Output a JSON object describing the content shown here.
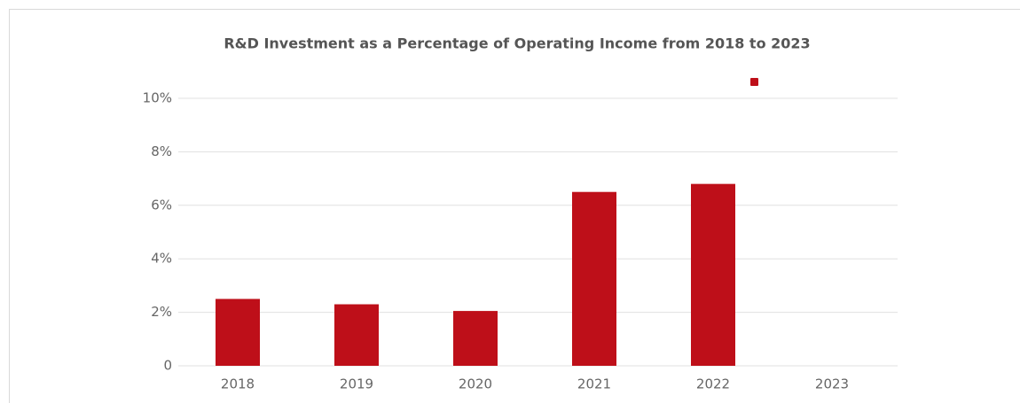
{
  "chart_data": {
    "type": "bar",
    "title": "R&D Investment as a Percentage of Operating Income from 2018 to 2023",
    "categories": [
      "2018",
      "2019",
      "2020",
      "2021",
      "2022",
      "2023"
    ],
    "values": [
      2.5,
      2.3,
      2.05,
      6.5,
      6.8,
      null
    ],
    "color": "#be0f19",
    "ylim": [
      0,
      10
    ],
    "yticks": [
      0,
      {
        "value": 2,
        "label": "2%"
      },
      {
        "value": 4,
        "label": "4%"
      },
      {
        "value": 6,
        "label": "6%"
      },
      {
        "value": 8,
        "label": "8%"
      },
      {
        "value": 10,
        "label": "10%"
      }
    ],
    "grid": true
  }
}
